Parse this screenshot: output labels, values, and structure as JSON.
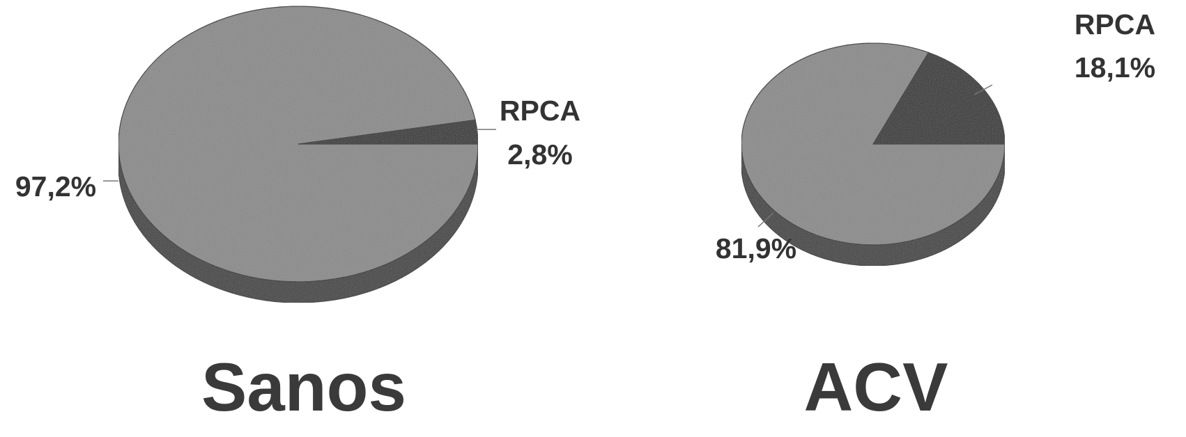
{
  "chart_data": [
    {
      "type": "pie",
      "title": "Sanos",
      "slices": [
        {
          "label": "RPCA",
          "value": 2.8,
          "display": "2,8%",
          "color": "#2e2e2e"
        },
        {
          "label": "",
          "value": 97.2,
          "display": "97,2%",
          "color": "#8a8a8a"
        }
      ]
    },
    {
      "type": "pie",
      "title": "ACV",
      "slices": [
        {
          "label": "RPCA",
          "value": 18.1,
          "display": "18,1%",
          "color": "#2e2e2e"
        },
        {
          "label": "",
          "value": 81.9,
          "display": "81,9%",
          "color": "#8a8a8a"
        }
      ]
    }
  ]
}
